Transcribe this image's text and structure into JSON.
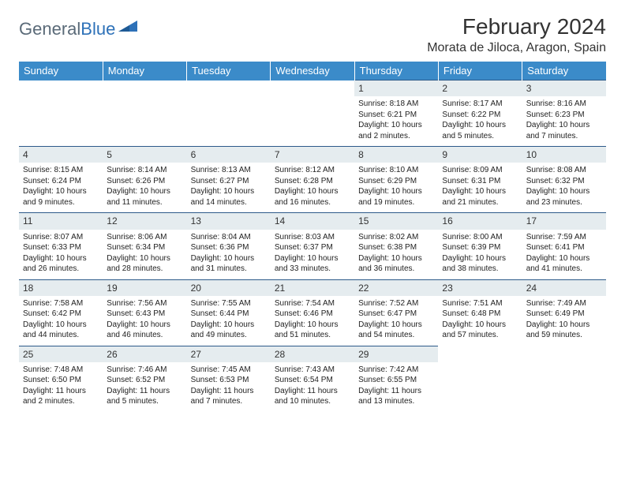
{
  "logo": {
    "word1": "General",
    "word2": "Blue"
  },
  "title": "February 2024",
  "location": "Morata de Jiloca, Aragon, Spain",
  "colors": {
    "header_bg": "#3b8bc9",
    "header_text": "#ffffff",
    "daynum_bg": "#e5ecef",
    "rule": "#2d5a8a",
    "logo_gray": "#5a6a78",
    "logo_blue": "#2d71b8"
  },
  "typography": {
    "title_fontsize": 28,
    "location_fontsize": 16,
    "header_fontsize": 13,
    "daynum_fontsize": 12,
    "detail_fontsize": 10
  },
  "day_headers": [
    "Sunday",
    "Monday",
    "Tuesday",
    "Wednesday",
    "Thursday",
    "Friday",
    "Saturday"
  ],
  "weeks": [
    [
      null,
      null,
      null,
      null,
      {
        "n": "1",
        "sr": "Sunrise: 8:18 AM",
        "ss": "Sunset: 6:21 PM",
        "dl1": "Daylight: 10 hours",
        "dl2": "and 2 minutes."
      },
      {
        "n": "2",
        "sr": "Sunrise: 8:17 AM",
        "ss": "Sunset: 6:22 PM",
        "dl1": "Daylight: 10 hours",
        "dl2": "and 5 minutes."
      },
      {
        "n": "3",
        "sr": "Sunrise: 8:16 AM",
        "ss": "Sunset: 6:23 PM",
        "dl1": "Daylight: 10 hours",
        "dl2": "and 7 minutes."
      }
    ],
    [
      {
        "n": "4",
        "sr": "Sunrise: 8:15 AM",
        "ss": "Sunset: 6:24 PM",
        "dl1": "Daylight: 10 hours",
        "dl2": "and 9 minutes."
      },
      {
        "n": "5",
        "sr": "Sunrise: 8:14 AM",
        "ss": "Sunset: 6:26 PM",
        "dl1": "Daylight: 10 hours",
        "dl2": "and 11 minutes."
      },
      {
        "n": "6",
        "sr": "Sunrise: 8:13 AM",
        "ss": "Sunset: 6:27 PM",
        "dl1": "Daylight: 10 hours",
        "dl2": "and 14 minutes."
      },
      {
        "n": "7",
        "sr": "Sunrise: 8:12 AM",
        "ss": "Sunset: 6:28 PM",
        "dl1": "Daylight: 10 hours",
        "dl2": "and 16 minutes."
      },
      {
        "n": "8",
        "sr": "Sunrise: 8:10 AM",
        "ss": "Sunset: 6:29 PM",
        "dl1": "Daylight: 10 hours",
        "dl2": "and 19 minutes."
      },
      {
        "n": "9",
        "sr": "Sunrise: 8:09 AM",
        "ss": "Sunset: 6:31 PM",
        "dl1": "Daylight: 10 hours",
        "dl2": "and 21 minutes."
      },
      {
        "n": "10",
        "sr": "Sunrise: 8:08 AM",
        "ss": "Sunset: 6:32 PM",
        "dl1": "Daylight: 10 hours",
        "dl2": "and 23 minutes."
      }
    ],
    [
      {
        "n": "11",
        "sr": "Sunrise: 8:07 AM",
        "ss": "Sunset: 6:33 PM",
        "dl1": "Daylight: 10 hours",
        "dl2": "and 26 minutes."
      },
      {
        "n": "12",
        "sr": "Sunrise: 8:06 AM",
        "ss": "Sunset: 6:34 PM",
        "dl1": "Daylight: 10 hours",
        "dl2": "and 28 minutes."
      },
      {
        "n": "13",
        "sr": "Sunrise: 8:04 AM",
        "ss": "Sunset: 6:36 PM",
        "dl1": "Daylight: 10 hours",
        "dl2": "and 31 minutes."
      },
      {
        "n": "14",
        "sr": "Sunrise: 8:03 AM",
        "ss": "Sunset: 6:37 PM",
        "dl1": "Daylight: 10 hours",
        "dl2": "and 33 minutes."
      },
      {
        "n": "15",
        "sr": "Sunrise: 8:02 AM",
        "ss": "Sunset: 6:38 PM",
        "dl1": "Daylight: 10 hours",
        "dl2": "and 36 minutes."
      },
      {
        "n": "16",
        "sr": "Sunrise: 8:00 AM",
        "ss": "Sunset: 6:39 PM",
        "dl1": "Daylight: 10 hours",
        "dl2": "and 38 minutes."
      },
      {
        "n": "17",
        "sr": "Sunrise: 7:59 AM",
        "ss": "Sunset: 6:41 PM",
        "dl1": "Daylight: 10 hours",
        "dl2": "and 41 minutes."
      }
    ],
    [
      {
        "n": "18",
        "sr": "Sunrise: 7:58 AM",
        "ss": "Sunset: 6:42 PM",
        "dl1": "Daylight: 10 hours",
        "dl2": "and 44 minutes."
      },
      {
        "n": "19",
        "sr": "Sunrise: 7:56 AM",
        "ss": "Sunset: 6:43 PM",
        "dl1": "Daylight: 10 hours",
        "dl2": "and 46 minutes."
      },
      {
        "n": "20",
        "sr": "Sunrise: 7:55 AM",
        "ss": "Sunset: 6:44 PM",
        "dl1": "Daylight: 10 hours",
        "dl2": "and 49 minutes."
      },
      {
        "n": "21",
        "sr": "Sunrise: 7:54 AM",
        "ss": "Sunset: 6:46 PM",
        "dl1": "Daylight: 10 hours",
        "dl2": "and 51 minutes."
      },
      {
        "n": "22",
        "sr": "Sunrise: 7:52 AM",
        "ss": "Sunset: 6:47 PM",
        "dl1": "Daylight: 10 hours",
        "dl2": "and 54 minutes."
      },
      {
        "n": "23",
        "sr": "Sunrise: 7:51 AM",
        "ss": "Sunset: 6:48 PM",
        "dl1": "Daylight: 10 hours",
        "dl2": "and 57 minutes."
      },
      {
        "n": "24",
        "sr": "Sunrise: 7:49 AM",
        "ss": "Sunset: 6:49 PM",
        "dl1": "Daylight: 10 hours",
        "dl2": "and 59 minutes."
      }
    ],
    [
      {
        "n": "25",
        "sr": "Sunrise: 7:48 AM",
        "ss": "Sunset: 6:50 PM",
        "dl1": "Daylight: 11 hours",
        "dl2": "and 2 minutes."
      },
      {
        "n": "26",
        "sr": "Sunrise: 7:46 AM",
        "ss": "Sunset: 6:52 PM",
        "dl1": "Daylight: 11 hours",
        "dl2": "and 5 minutes."
      },
      {
        "n": "27",
        "sr": "Sunrise: 7:45 AM",
        "ss": "Sunset: 6:53 PM",
        "dl1": "Daylight: 11 hours",
        "dl2": "and 7 minutes."
      },
      {
        "n": "28",
        "sr": "Sunrise: 7:43 AM",
        "ss": "Sunset: 6:54 PM",
        "dl1": "Daylight: 11 hours",
        "dl2": "and 10 minutes."
      },
      {
        "n": "29",
        "sr": "Sunrise: 7:42 AM",
        "ss": "Sunset: 6:55 PM",
        "dl1": "Daylight: 11 hours",
        "dl2": "and 13 minutes."
      },
      null,
      null
    ]
  ]
}
